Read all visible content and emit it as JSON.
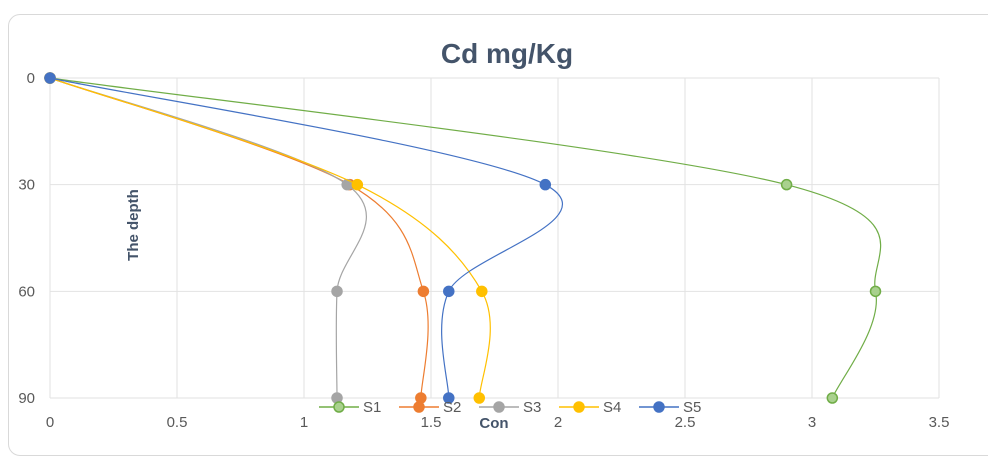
{
  "chart_data": {
    "type": "line",
    "title": "Cd mg/Kg",
    "xlabel": "Con",
    "ylabel": "The depth",
    "xlim": [
      0,
      3.5
    ],
    "ylim": [
      0,
      90
    ],
    "y_reversed": true,
    "x_ticks": [
      "0",
      "0.5",
      "1",
      "1.5",
      "2",
      "2.5",
      "3",
      "3.5"
    ],
    "y_ticks": [
      "0",
      "30",
      "60",
      "90"
    ],
    "grid": "vertical and horizontal",
    "legend_position": "bottom",
    "series": [
      {
        "name": "S1",
        "color": "#70ad47",
        "fill": "#a9d18e",
        "points": [
          [
            0,
            0
          ],
          [
            2.9,
            30
          ],
          [
            3.25,
            60
          ],
          [
            3.08,
            90
          ]
        ]
      },
      {
        "name": "S2",
        "color": "#ed7d31",
        "fill": "#ed7d31",
        "points": [
          [
            0,
            0
          ],
          [
            1.18,
            30
          ],
          [
            1.47,
            60
          ],
          [
            1.46,
            90
          ]
        ]
      },
      {
        "name": "S3",
        "color": "#a5a5a5",
        "fill": "#a5a5a5",
        "points": [
          [
            0,
            0
          ],
          [
            1.17,
            30
          ],
          [
            1.13,
            60
          ],
          [
            1.13,
            90
          ]
        ]
      },
      {
        "name": "S4",
        "color": "#ffc000",
        "fill": "#ffc000",
        "points": [
          [
            0,
            0
          ],
          [
            1.21,
            30
          ],
          [
            1.7,
            60
          ],
          [
            1.69,
            90
          ]
        ]
      },
      {
        "name": "S5",
        "color": "#4472c4",
        "fill": "#4472c4",
        "points": [
          [
            0,
            0
          ],
          [
            1.95,
            30
          ],
          [
            1.57,
            60
          ],
          [
            1.57,
            90
          ]
        ]
      }
    ]
  }
}
